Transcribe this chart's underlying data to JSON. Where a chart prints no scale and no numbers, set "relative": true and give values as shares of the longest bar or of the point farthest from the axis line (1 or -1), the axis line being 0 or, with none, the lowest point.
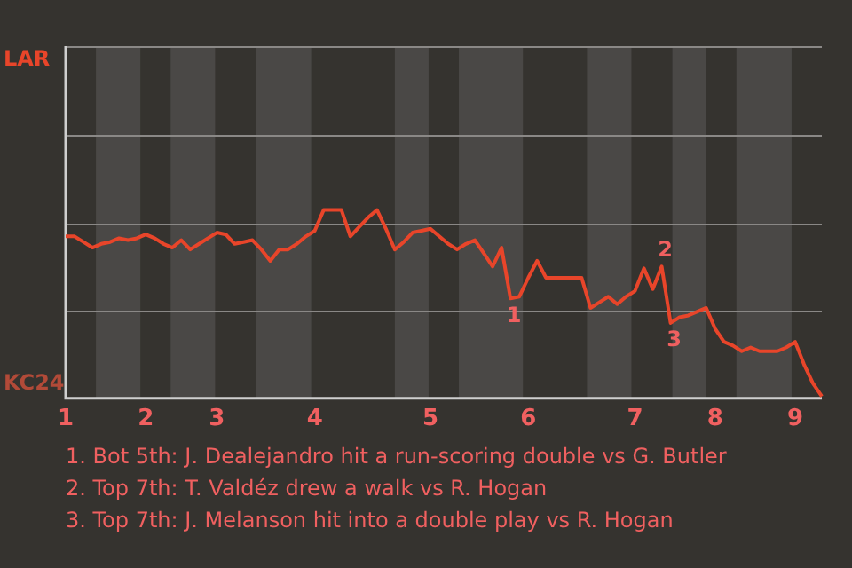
{
  "chart_data": {
    "type": "line",
    "relative": true,
    "categories": [
      "1",
      null,
      null,
      null,
      null,
      null,
      null,
      null,
      null,
      "2",
      null,
      null,
      null,
      null,
      null,
      null,
      null,
      "3",
      null,
      null,
      null,
      null,
      null,
      null,
      null,
      null,
      null,
      null,
      "4",
      null,
      null,
      null,
      null,
      null,
      null,
      null,
      null,
      null,
      null,
      null,
      null,
      "5",
      null,
      null,
      null,
      null,
      null,
      null,
      null,
      null,
      null,
      null,
      "6",
      null,
      null,
      null,
      null,
      null,
      null,
      null,
      null,
      null,
      null,
      null,
      "7",
      null,
      null,
      null,
      null,
      null,
      null,
      null,
      null,
      "8",
      null,
      null,
      null,
      null,
      null,
      null,
      null,
      null,
      "9",
      null,
      null,
      null
    ],
    "series": [
      {
        "color": "#e8452a",
        "values": [
          0.86,
          0.86,
          0.83,
          0.8,
          0.82,
          0.83,
          0.85,
          0.84,
          0.85,
          0.87,
          0.85,
          0.82,
          0.8,
          0.84,
          0.79,
          0.82,
          0.85,
          0.88,
          0.87,
          0.82,
          0.83,
          0.84,
          0.79,
          0.73,
          0.79,
          0.79,
          0.82,
          0.86,
          0.89,
          1,
          1,
          1,
          0.86,
          0.91,
          0.96,
          1,
          0.9,
          0.79,
          0.83,
          0.88,
          0.89,
          0.9,
          0.86,
          0.82,
          0.79,
          0.82,
          0.84,
          0.77,
          0.7,
          0.8,
          0.53,
          0.54,
          0.64,
          0.73,
          0.64,
          0.64,
          0.64,
          0.64,
          0.64,
          0.48,
          0.51,
          0.54,
          0.5,
          0.54,
          0.57,
          0.69,
          0.58,
          0.7,
          0.4,
          0.43,
          0.44,
          0.46,
          0.48,
          0.37,
          0.3,
          0.28,
          0.25,
          0.27,
          0.25,
          0.25,
          0.25,
          0.27,
          0.3,
          0.18,
          0.08,
          0.01
        ]
      }
    ],
    "legend": false,
    "marker": "none",
    "line_style": "solid",
    "ref_lines": [
      {
        "axis": "y",
        "value": 0.47,
        "color": "#8a8886"
      },
      {
        "axis": "y",
        "value": 0.93,
        "color": "#8a8886"
      },
      {
        "axis": "y",
        "value": 1.4,
        "color": "#8a8886"
      },
      {
        "axis": "y",
        "value": 1.87,
        "color": "#8a8886"
      }
    ],
    "annotations": [
      "LAR",
      "KC24",
      {
        "text": "1",
        "y": 0.53
      },
      {
        "text": "2",
        "y": 0.7
      },
      {
        "text": "3",
        "y": 0.4
      },
      "1. Bot 5th: J. Dealejandro hit a run-scoring double vs G. Butler",
      "2. Top 7th: T. Valdéz drew a walk vs R. Hogan",
      "3. Top 7th: J. Melanson hit into a double play vs R. Hogan"
    ]
  }
}
